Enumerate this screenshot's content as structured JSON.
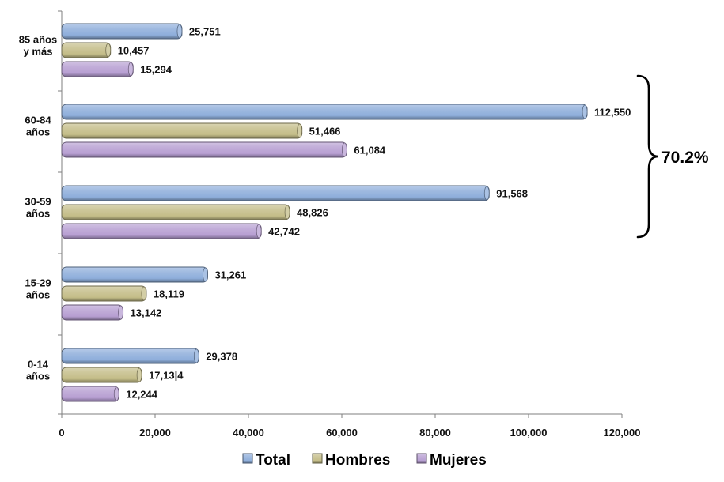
{
  "chart_data": {
    "type": "bar",
    "orientation": "horizontal",
    "categories": [
      "85 años y más",
      "60-84 años",
      "30-59 años",
      "15-29 años",
      "0-14 años"
    ],
    "series": [
      {
        "name": "Total",
        "color": "#8eaedb",
        "values": [
          25751,
          112550,
          91568,
          31261,
          29378
        ]
      },
      {
        "name": "Hombres",
        "color": "#c4bd88",
        "values": [
          10457,
          51466,
          48826,
          18119,
          17134
        ]
      },
      {
        "name": "Mujeres",
        "color": "#b79fd2",
        "values": [
          15294,
          61084,
          42742,
          13142,
          12244
        ]
      }
    ],
    "data_labels": [
      [
        "25,751",
        "10,457",
        "15,294"
      ],
      [
        "112,550",
        "51,466",
        "61,084"
      ],
      [
        "91,568",
        "48,826",
        "42,742"
      ],
      [
        "31,261",
        "18,119",
        "13,142"
      ],
      [
        "29,378",
        "17,13|4",
        "12,244"
      ]
    ],
    "xlim": [
      0,
      120000
    ],
    "x_ticks": [
      0,
      20000,
      40000,
      60000,
      80000,
      100000,
      120000
    ],
    "x_tick_labels": [
      "0",
      "20,000",
      "40,000",
      "60,000",
      "80,000",
      "100,000",
      "120,000"
    ],
    "annotation": {
      "text": "70.2%",
      "spans_categories": [
        "60-84 años",
        "30-59 años"
      ],
      "shape": "curly-brace"
    },
    "legend": {
      "placement": "bottom-center",
      "entries": [
        "Total",
        "Hombres",
        "Mujeres"
      ]
    },
    "grid": false,
    "title": "",
    "xlabel": "",
    "ylabel": ""
  }
}
